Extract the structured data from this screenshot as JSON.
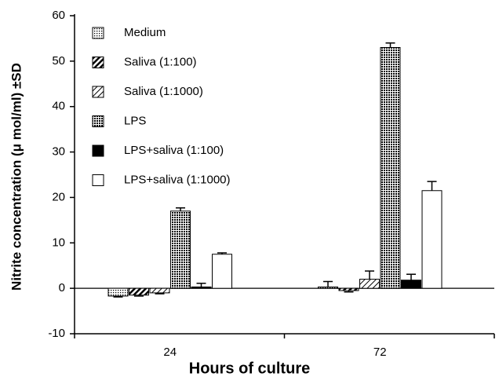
{
  "chart_data": {
    "type": "bar",
    "x_label": "Hours of culture",
    "y_label": "Nitrite concentration (μ mol/ml) ±SD",
    "categories": [
      "24",
      "72"
    ],
    "series": [
      {
        "name": "Medium",
        "color": "#8c8c8c",
        "pattern": "dots",
        "values": [
          -1.7,
          0.3
        ],
        "errors": [
          0.2,
          1.2
        ]
      },
      {
        "name": "Saliva (1:100)",
        "color": "#333333",
        "pattern": "hatch",
        "values": [
          -1.5,
          -0.5
        ],
        "errors": [
          0.2,
          0.3
        ]
      },
      {
        "name": "Saliva (1:1000)",
        "color": "#888888",
        "pattern": "hatch",
        "values": [
          -1,
          2
        ],
        "errors": [
          0.2,
          1.8
        ]
      },
      {
        "name": "LPS",
        "color": "#555555",
        "pattern": "dots",
        "values": [
          17,
          53
        ],
        "errors": [
          0.7,
          1
        ]
      },
      {
        "name": "LPS+saliva (1:100)",
        "color": "#000000",
        "pattern": "solid",
        "values": [
          0.3,
          1.8
        ],
        "errors": [
          0.8,
          1.3
        ]
      },
      {
        "name": "LPS+saliva (1:1000)",
        "color": "#ffffff",
        "pattern": "solid",
        "values": [
          7.5,
          21.5
        ],
        "errors": [
          0.3,
          2
        ]
      }
    ],
    "ylim": [
      -10,
      60
    ],
    "yticks": [
      -10,
      0,
      10,
      20,
      30,
      40,
      50,
      60
    ],
    "legend": "top-left"
  }
}
